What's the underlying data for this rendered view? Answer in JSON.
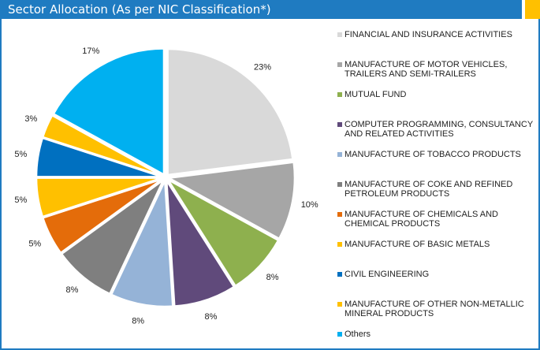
{
  "chart_data": {
    "type": "pie",
    "title": "Sector Allocation (As per NIC Classification*)",
    "categories": [
      "FINANCIAL AND INSURANCE ACTIVITIES",
      "MANUFACTURE OF MOTOR VEHICLES, TRAILERS AND SEMI-TRAILERS",
      "MUTUAL FUND",
      "COMPUTER PROGRAMMING, CONSULTANCY AND RELATED ACTIVITIES",
      "MANUFACTURE OF TOBACCO PRODUCTS",
      "MANUFACTURE OF COKE AND REFINED PETROLEUM PRODUCTS",
      "MANUFACTURE OF CHEMICALS AND CHEMICAL PRODUCTS",
      "MANUFACTURE OF BASIC METALS",
      "CIVIL ENGINEERING",
      "MANUFACTURE OF OTHER NON-METALLIC MINERAL PRODUCTS",
      "Others"
    ],
    "values": [
      23,
      10,
      8,
      8,
      8,
      8,
      5,
      5,
      5,
      3,
      17
    ],
    "value_labels": [
      "23%",
      "10%",
      "8%",
      "8%",
      "8%",
      "8%",
      "5%",
      "5%",
      "5%",
      "3%",
      "17%"
    ],
    "colors": [
      "#d9d9d9",
      "#a6a6a6",
      "#8eb04e",
      "#604a7b",
      "#95b3d7",
      "#7f7f7f",
      "#e46c0a",
      "#ffc000",
      "#0070c0",
      "#ffc000",
      "#00b0f0"
    ],
    "legend": "right"
  }
}
